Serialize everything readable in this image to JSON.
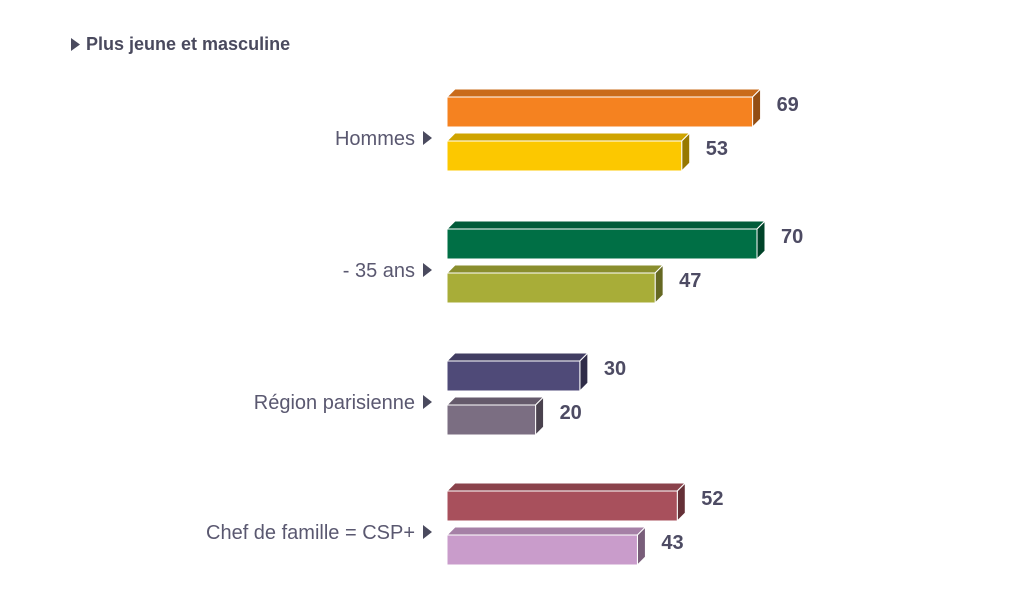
{
  "chart_data": {
    "type": "bar",
    "orientation": "horizontal",
    "title": "Plus jeune et masculine",
    "categories": [
      "Hommes",
      "- 35 ans",
      "Région parisienne",
      "Chef de famille = CSP+"
    ],
    "groups": [
      {
        "category": "Hommes",
        "values": [
          69,
          53
        ],
        "colors": [
          "#f58220",
          "#fcc800"
        ]
      },
      {
        "category": "- 35 ans",
        "values": [
          70,
          47
        ],
        "colors": [
          "#006f45",
          "#a8ad38"
        ]
      },
      {
        "category": "Région parisienne",
        "values": [
          30,
          20
        ],
        "colors": [
          "#4f4a78",
          "#7b6e82"
        ]
      },
      {
        "category": "Chef de famille = CSP+",
        "values": [
          52,
          43
        ],
        "colors": [
          "#a8505c",
          "#c99ccb"
        ]
      }
    ],
    "xlim": [
      0,
      70
    ],
    "grid": false,
    "legend": "none"
  }
}
